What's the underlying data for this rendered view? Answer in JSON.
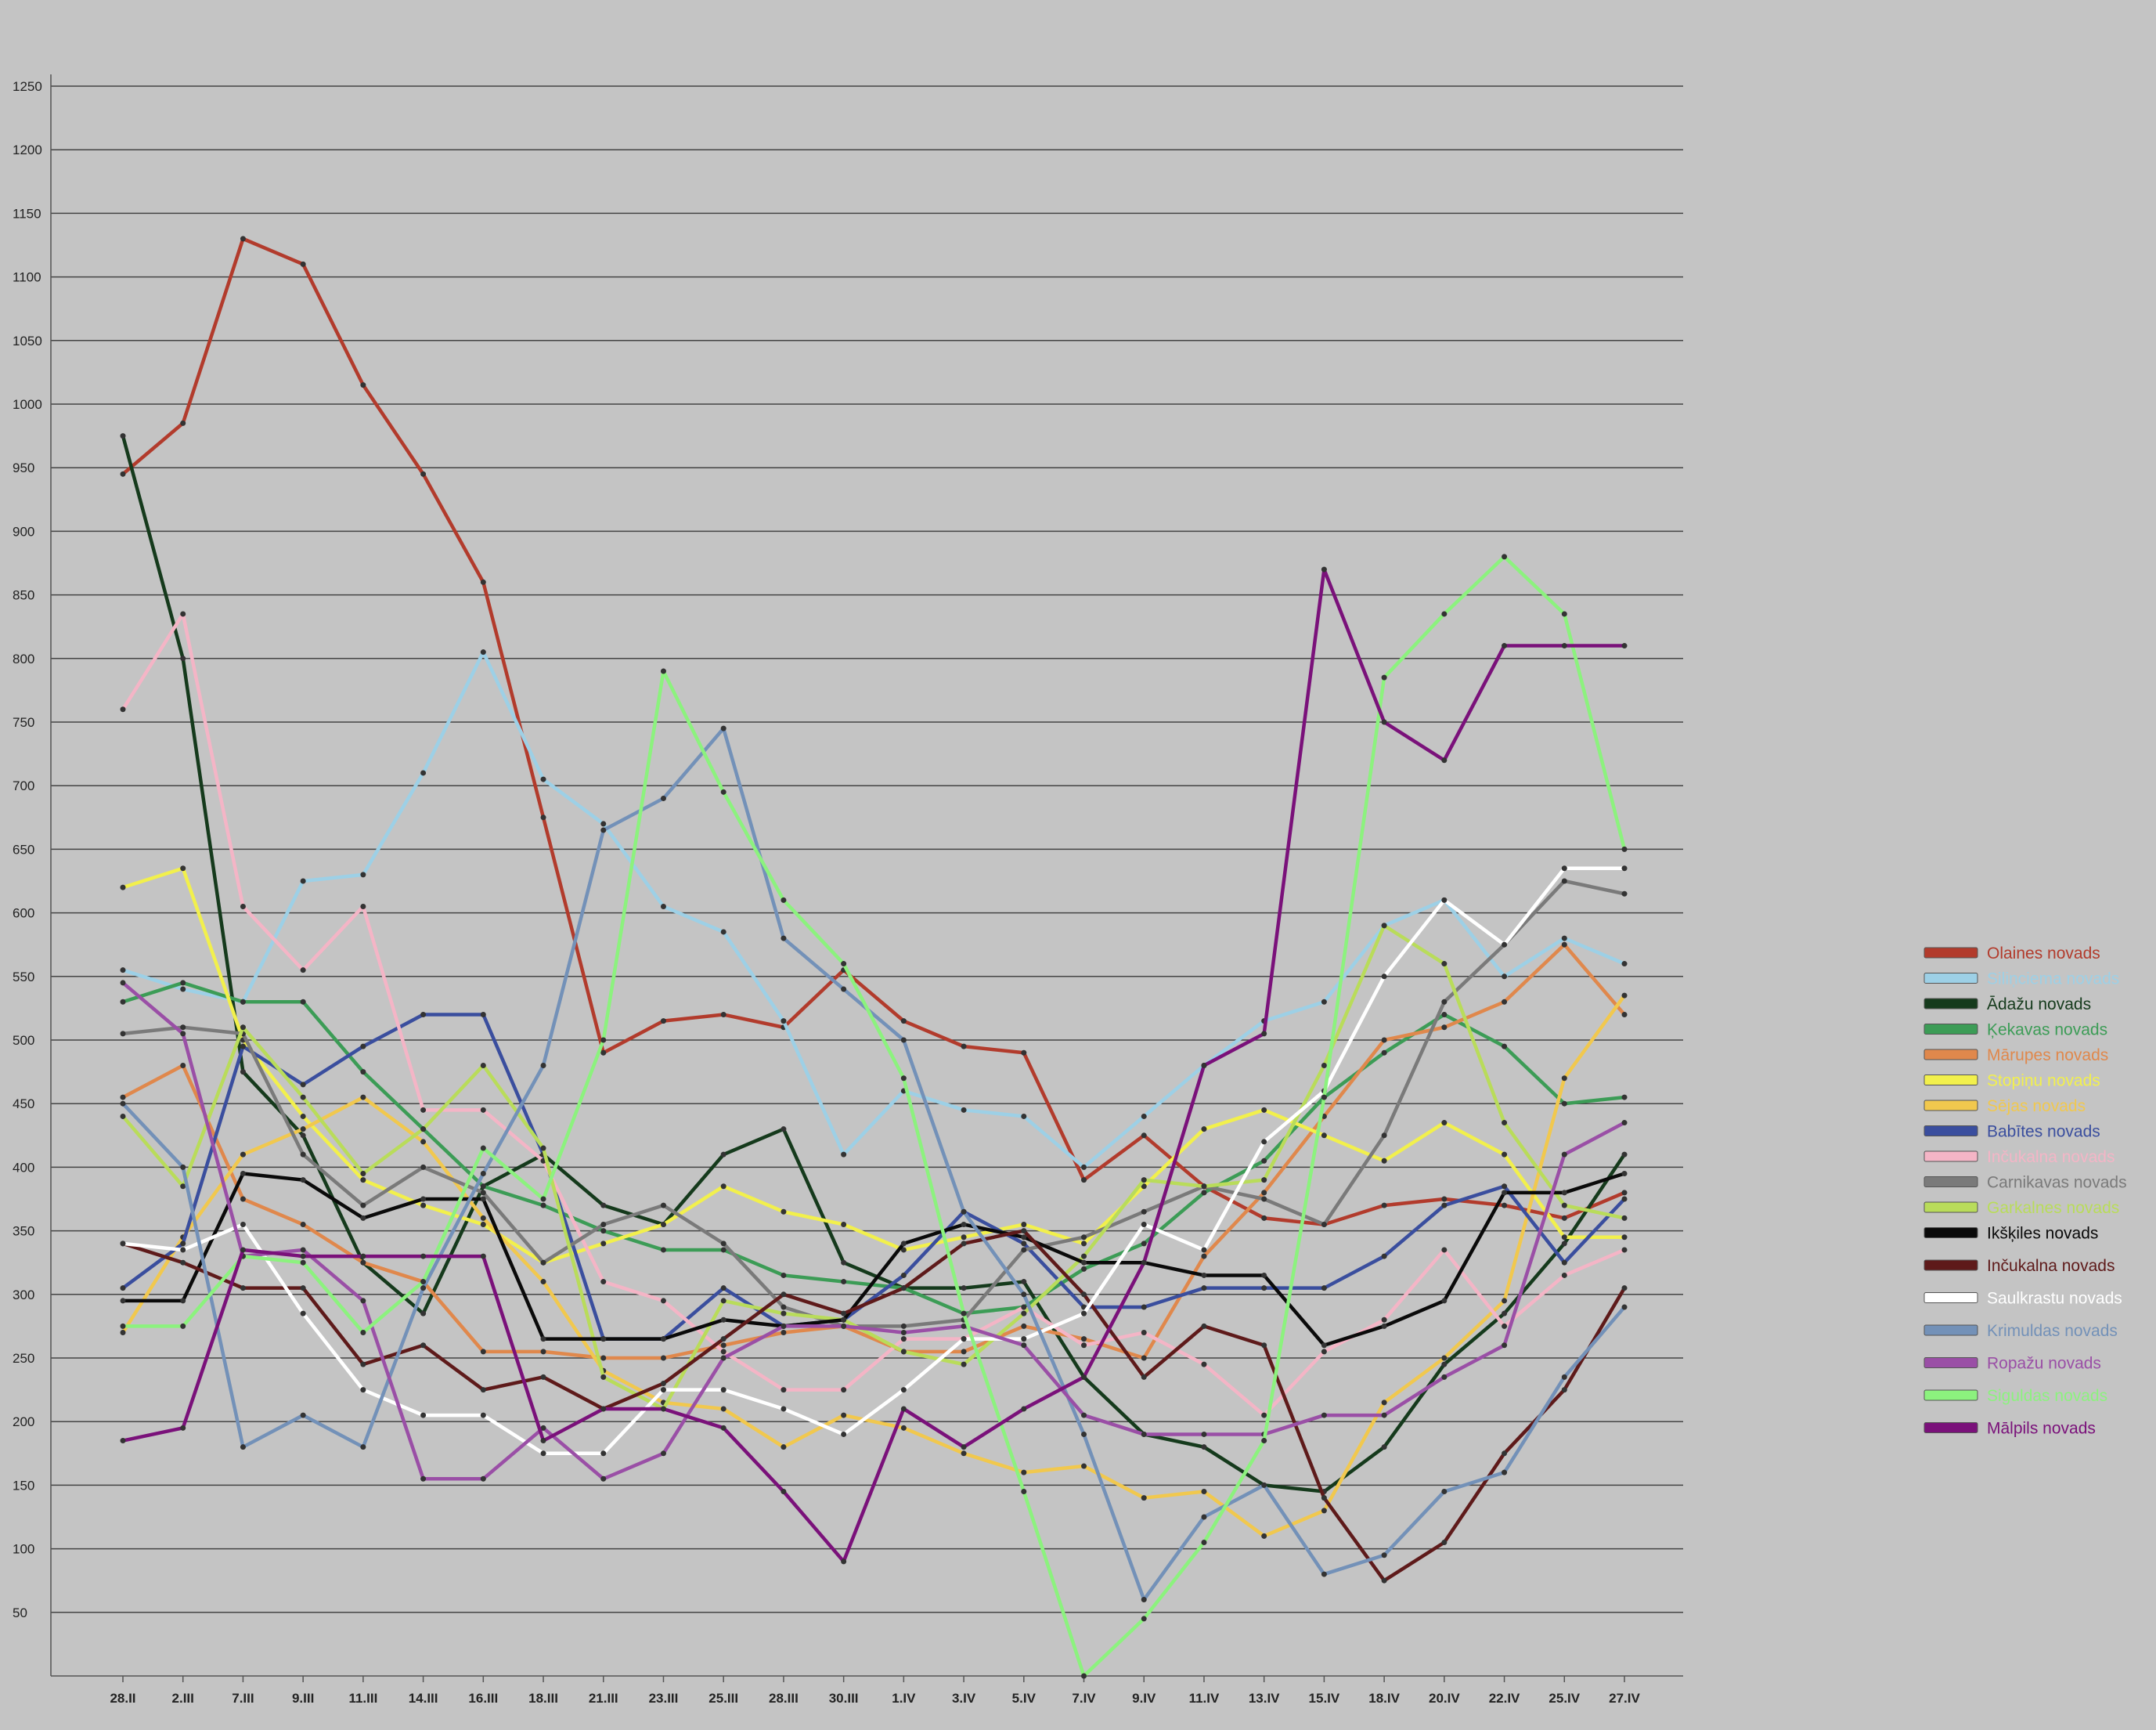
{
  "chart_data": {
    "type": "line",
    "title": "",
    "xlabel": "",
    "ylabel": "",
    "ylim": [
      0,
      1250
    ],
    "yticks": [
      50,
      100,
      150,
      200,
      250,
      300,
      350,
      400,
      450,
      500,
      550,
      600,
      650,
      700,
      750,
      800,
      850,
      900,
      950,
      1000,
      1050,
      1100,
      1150,
      1200,
      1250
    ],
    "grid": true,
    "legend_position": "right",
    "categories": [
      "28.II",
      "2.III",
      "7.III",
      "9.III",
      "11.III",
      "14.III",
      "16.III",
      "18.III",
      "21.III",
      "23.III",
      "25.III",
      "28.III",
      "30.III",
      "1.IV",
      "3.IV",
      "5.IV",
      "7.IV",
      "9.IV",
      "11.IV",
      "13.IV",
      "15.IV",
      "18.IV",
      "20.IV",
      "22.IV",
      "25.IV",
      "27.IV"
    ],
    "series": [
      {
        "name": "Olaines novads",
        "color": "#b23b2c",
        "values": [
          945,
          985,
          1130,
          1110,
          1015,
          945,
          860,
          675,
          490,
          515,
          520,
          510,
          555,
          515,
          495,
          490,
          390,
          425,
          385,
          360,
          355,
          370,
          375,
          370,
          360,
          380
        ]
      },
      {
        "name": "Siliņciema novads",
        "color": "#9dd0e6",
        "values": [
          555,
          540,
          530,
          625,
          630,
          710,
          805,
          705,
          670,
          605,
          585,
          515,
          410,
          460,
          445,
          440,
          400,
          440,
          480,
          515,
          530,
          590,
          610,
          550,
          580,
          560
        ]
      },
      {
        "name": "Ādažu novads",
        "color": "#153a1c",
        "values": [
          975,
          800,
          475,
          425,
          325,
          285,
          385,
          410,
          370,
          355,
          410,
          430,
          325,
          305,
          305,
          310,
          235,
          190,
          180,
          150,
          145,
          180,
          245,
          285,
          340,
          410
        ]
      },
      {
        "name": "Ķekavas novads",
        "color": "#3c9c56",
        "values": [
          530,
          545,
          530,
          530,
          475,
          430,
          385,
          370,
          350,
          335,
          335,
          315,
          310,
          305,
          285,
          290,
          320,
          340,
          380,
          405,
          455,
          490,
          520,
          495,
          450,
          455
        ]
      },
      {
        "name": "Mārupes novads",
        "color": "#e0884c",
        "values": [
          455,
          480,
          375,
          355,
          325,
          310,
          255,
          255,
          250,
          250,
          260,
          270,
          275,
          255,
          255,
          275,
          265,
          250,
          330,
          380,
          440,
          500,
          510,
          530,
          575,
          520
        ]
      },
      {
        "name": "Stopiņu novads",
        "color": "#f2f04c",
        "values": [
          620,
          635,
          500,
          440,
          390,
          370,
          355,
          325,
          340,
          355,
          385,
          365,
          355,
          335,
          345,
          355,
          340,
          385,
          430,
          445,
          425,
          405,
          435,
          410,
          345,
          345
        ]
      },
      {
        "name": "Sējas novads",
        "color": "#f1c84e",
        "values": [
          270,
          345,
          410,
          430,
          455,
          420,
          360,
          310,
          240,
          215,
          210,
          180,
          205,
          195,
          175,
          160,
          165,
          140,
          145,
          110,
          130,
          215,
          250,
          295,
          470,
          535
        ]
      },
      {
        "name": "Babītes novads",
        "color": "#3a4e9e",
        "values": [
          305,
          340,
          495,
          465,
          495,
          520,
          520,
          410,
          265,
          265,
          305,
          275,
          280,
          315,
          365,
          340,
          290,
          290,
          305,
          305,
          305,
          330,
          370,
          385,
          325,
          375
        ]
      },
      {
        "name": "Inčukalna novads",
        "color": "#f4b5c6",
        "values": [
          760,
          835,
          605,
          555,
          605,
          445,
          445,
          405,
          310,
          295,
          255,
          225,
          225,
          265,
          265,
          290,
          260,
          270,
          245,
          205,
          255,
          280,
          335,
          275,
          315,
          335
        ]
      },
      {
        "name": "Carnikavas novads",
        "color": "#7a7a7a",
        "values": [
          505,
          510,
          505,
          410,
          370,
          400,
          380,
          325,
          355,
          370,
          340,
          290,
          275,
          275,
          280,
          335,
          345,
          365,
          385,
          375,
          355,
          425,
          530,
          575,
          625,
          615
        ]
      },
      {
        "name": "Garkalnes novads",
        "color": "#b9dc5a",
        "values": [
          440,
          385,
          510,
          455,
          395,
          430,
          480,
          415,
          235,
          210,
          295,
          285,
          280,
          255,
          245,
          285,
          330,
          390,
          385,
          390,
          480,
          590,
          560,
          435,
          370,
          360
        ]
      },
      {
        "name": "Ikšķiles novads",
        "color": "#0a0a0a",
        "values": [
          295,
          295,
          395,
          390,
          360,
          375,
          375,
          265,
          265,
          265,
          280,
          275,
          280,
          340,
          355,
          345,
          325,
          325,
          315,
          315,
          260,
          275,
          295,
          380,
          380,
          395
        ]
      },
      {
        "name": "Inčukalna novads",
        "color": "#5e1a1a",
        "values": [
          340,
          325,
          305,
          305,
          245,
          260,
          225,
          235,
          210,
          230,
          265,
          300,
          285,
          305,
          340,
          350,
          300,
          235,
          275,
          260,
          140,
          75,
          105,
          175,
          225,
          305
        ]
      },
      {
        "name": "Saulkrastu novads",
        "color": "#ffffff",
        "values": [
          340,
          335,
          355,
          285,
          225,
          205,
          205,
          175,
          175,
          225,
          225,
          210,
          190,
          225,
          265,
          265,
          285,
          355,
          335,
          420,
          460,
          550,
          610,
          575,
          635,
          635
        ]
      },
      {
        "name": "Krimuldas novads",
        "color": "#7391b8",
        "values": [
          450,
          400,
          180,
          205,
          180,
          305,
          395,
          480,
          665,
          690,
          745,
          580,
          540,
          500,
          365,
          300,
          190,
          60,
          125,
          150,
          80,
          95,
          145,
          160,
          235,
          290
        ]
      },
      {
        "name": "Ropažu novads",
        "color": "#9a4fa6",
        "values": [
          545,
          505,
          330,
          335,
          295,
          155,
          155,
          195,
          155,
          175,
          250,
          275,
          275,
          270,
          275,
          260,
          205,
          190,
          190,
          190,
          205,
          205,
          235,
          260,
          410,
          435
        ]
      },
      {
        "name": "Siguldas novads",
        "color": "#8cf27e",
        "values": [
          275,
          275,
          330,
          325,
          270,
          310,
          415,
          375,
          500,
          790,
          695,
          610,
          560,
          470,
          285,
          145,
          0,
          45,
          105,
          185,
          455,
          785,
          835,
          880,
          835,
          650
        ]
      },
      {
        "name": "Mālpils novads",
        "color": "#7a117a",
        "values": [
          185,
          195,
          335,
          330,
          330,
          330,
          330,
          185,
          210,
          210,
          195,
          145,
          90,
          210,
          180,
          210,
          235,
          325,
          480,
          505,
          870,
          750,
          720,
          810,
          810,
          810
        ]
      }
    ]
  },
  "legend": {
    "labels": [
      "Olaines novads",
      "Siliņciema novads",
      "Ādažu novads",
      "Ķekavas novads",
      "Mārupes novads",
      "Stopiņu novads",
      "Sējas novads",
      "Babītes novads",
      "Inčukalna novads",
      "Carnikavas novads",
      "Garkalnes novads",
      "Ikšķiles novads",
      "Inčukalna novads",
      "Saulkrastu novads",
      "Krimuldas novads",
      "Ropažu novads",
      "Siguldas novads",
      "Mālpils novads"
    ]
  }
}
